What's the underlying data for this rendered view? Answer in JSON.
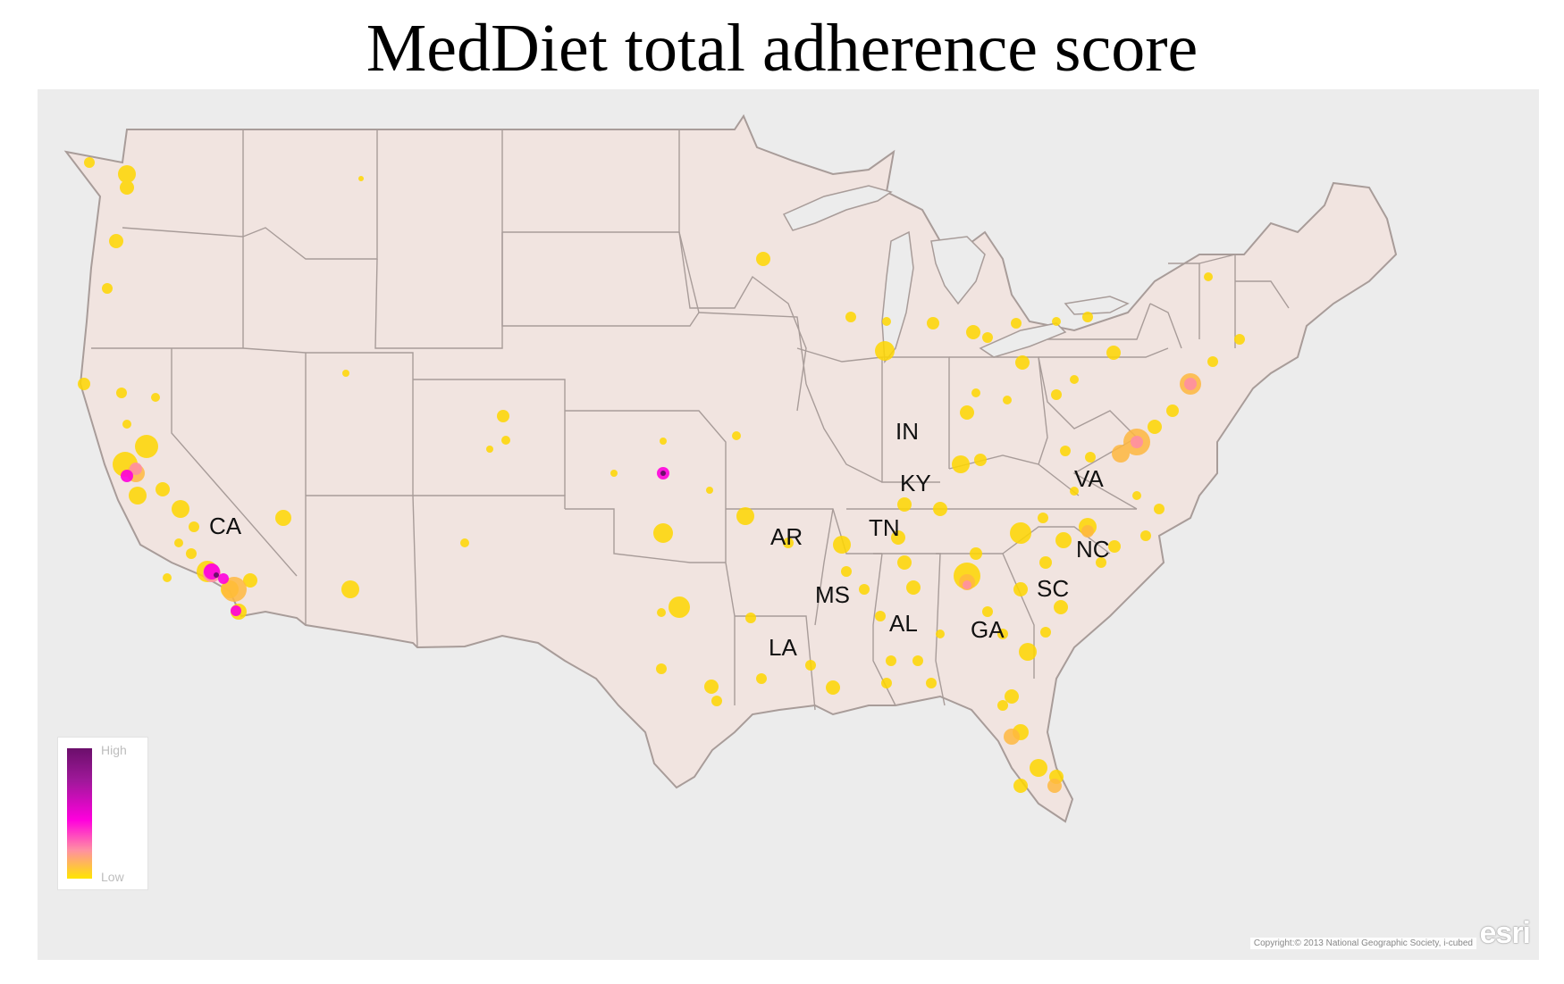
{
  "title": "MedDiet total adherence score",
  "legend": {
    "high_label": "High",
    "low_label": "Low"
  },
  "colors": {
    "background": "#ececec",
    "land": "#f1e4e0",
    "border": "#a89c99",
    "low": "#ffd700",
    "mid": "#ff8fa3",
    "high": "#ff00dd",
    "max": "#6b0f6b"
  },
  "state_labels": [
    "CA",
    "AR",
    "TN",
    "MS",
    "AL",
    "LA",
    "GA",
    "SC",
    "NC",
    "VA",
    "KY",
    "IN"
  ],
  "copyright": "Copyright:© 2013 National Geographic Society, i-cubed",
  "logo_text": "esri"
}
